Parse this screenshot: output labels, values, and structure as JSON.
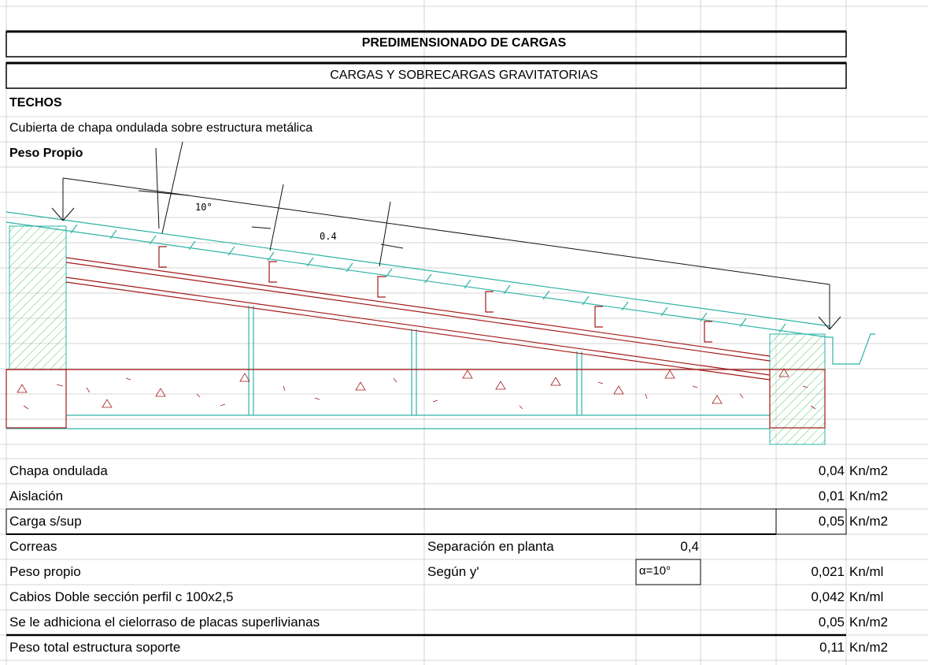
{
  "title": "PREDIMENSIONADO DE CARGAS",
  "subtitle": "CARGAS Y SOBRECARGAS GRAVITATORIAS",
  "section": "TECHOS",
  "description": "Cubierta de chapa ondulada sobre estructura metálica",
  "subsection": "Peso Propio",
  "drawing": {
    "angle_label": "10°",
    "spacing_label": "0.4"
  },
  "rows": [
    {
      "label": "Chapa ondulada",
      "value": "0,04",
      "unit": "Kn/m2"
    },
    {
      "label": "Aislación",
      "value": "0,01",
      "unit": "Kn/m2"
    },
    {
      "label": "Carga s/sup",
      "value": "0,05",
      "unit": "Kn/m2"
    },
    {
      "label": "Correas",
      "mid_label": "Separación en planta",
      "mid_value": "0,4"
    },
    {
      "label": "Peso propio",
      "mid_label": "Según y'",
      "mid_value": "α=10°",
      "value": "0,021",
      "unit": "Kn/ml"
    },
    {
      "label": "Cabios Doble sección perfil c 100x2,5",
      "value": "0,042",
      "unit": "Kn/ml"
    },
    {
      "label": "Se le adhiciona el cielorraso de placas superlivianas",
      "value": "0,05",
      "unit": "Kn/m2"
    },
    {
      "label": "Peso total estructura soporte",
      "value": "0,11",
      "unit": "Kn/m2"
    }
  ]
}
